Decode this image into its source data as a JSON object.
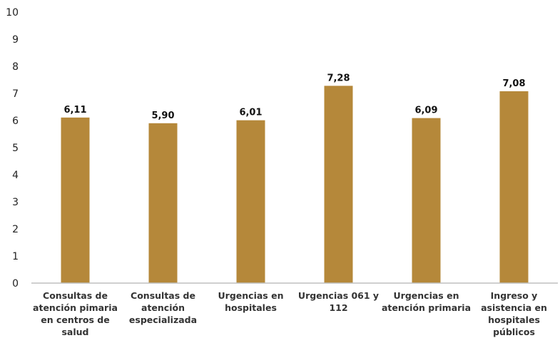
{
  "chart_data": {
    "type": "bar",
    "categories": [
      [
        "Consultas de",
        "atención pimaria",
        "en centros de",
        "salud"
      ],
      [
        "Consultas de",
        "atención",
        "especializada"
      ],
      [
        "Urgencias en",
        "hospitales"
      ],
      [
        "Urgencias 061 y",
        "112"
      ],
      [
        "Urgencias en",
        "atención primaria"
      ],
      [
        "Ingreso y",
        "asistencia en",
        "hospitales",
        "públicos"
      ]
    ],
    "values": [
      6.11,
      5.9,
      6.01,
      7.28,
      6.09,
      7.08
    ],
    "value_labels": [
      "6,11",
      "5,90",
      "6,01",
      "7,28",
      "6,09",
      "7,08"
    ],
    "ylim": [
      0,
      10
    ],
    "yticks": [
      0,
      1,
      2,
      3,
      4,
      5,
      6,
      7,
      8,
      9,
      10
    ],
    "title": "",
    "xlabel": "",
    "ylabel": "",
    "grid": false,
    "legend": "none",
    "bar_color": "#b5883a",
    "axis_color": "#bfbfbf"
  }
}
